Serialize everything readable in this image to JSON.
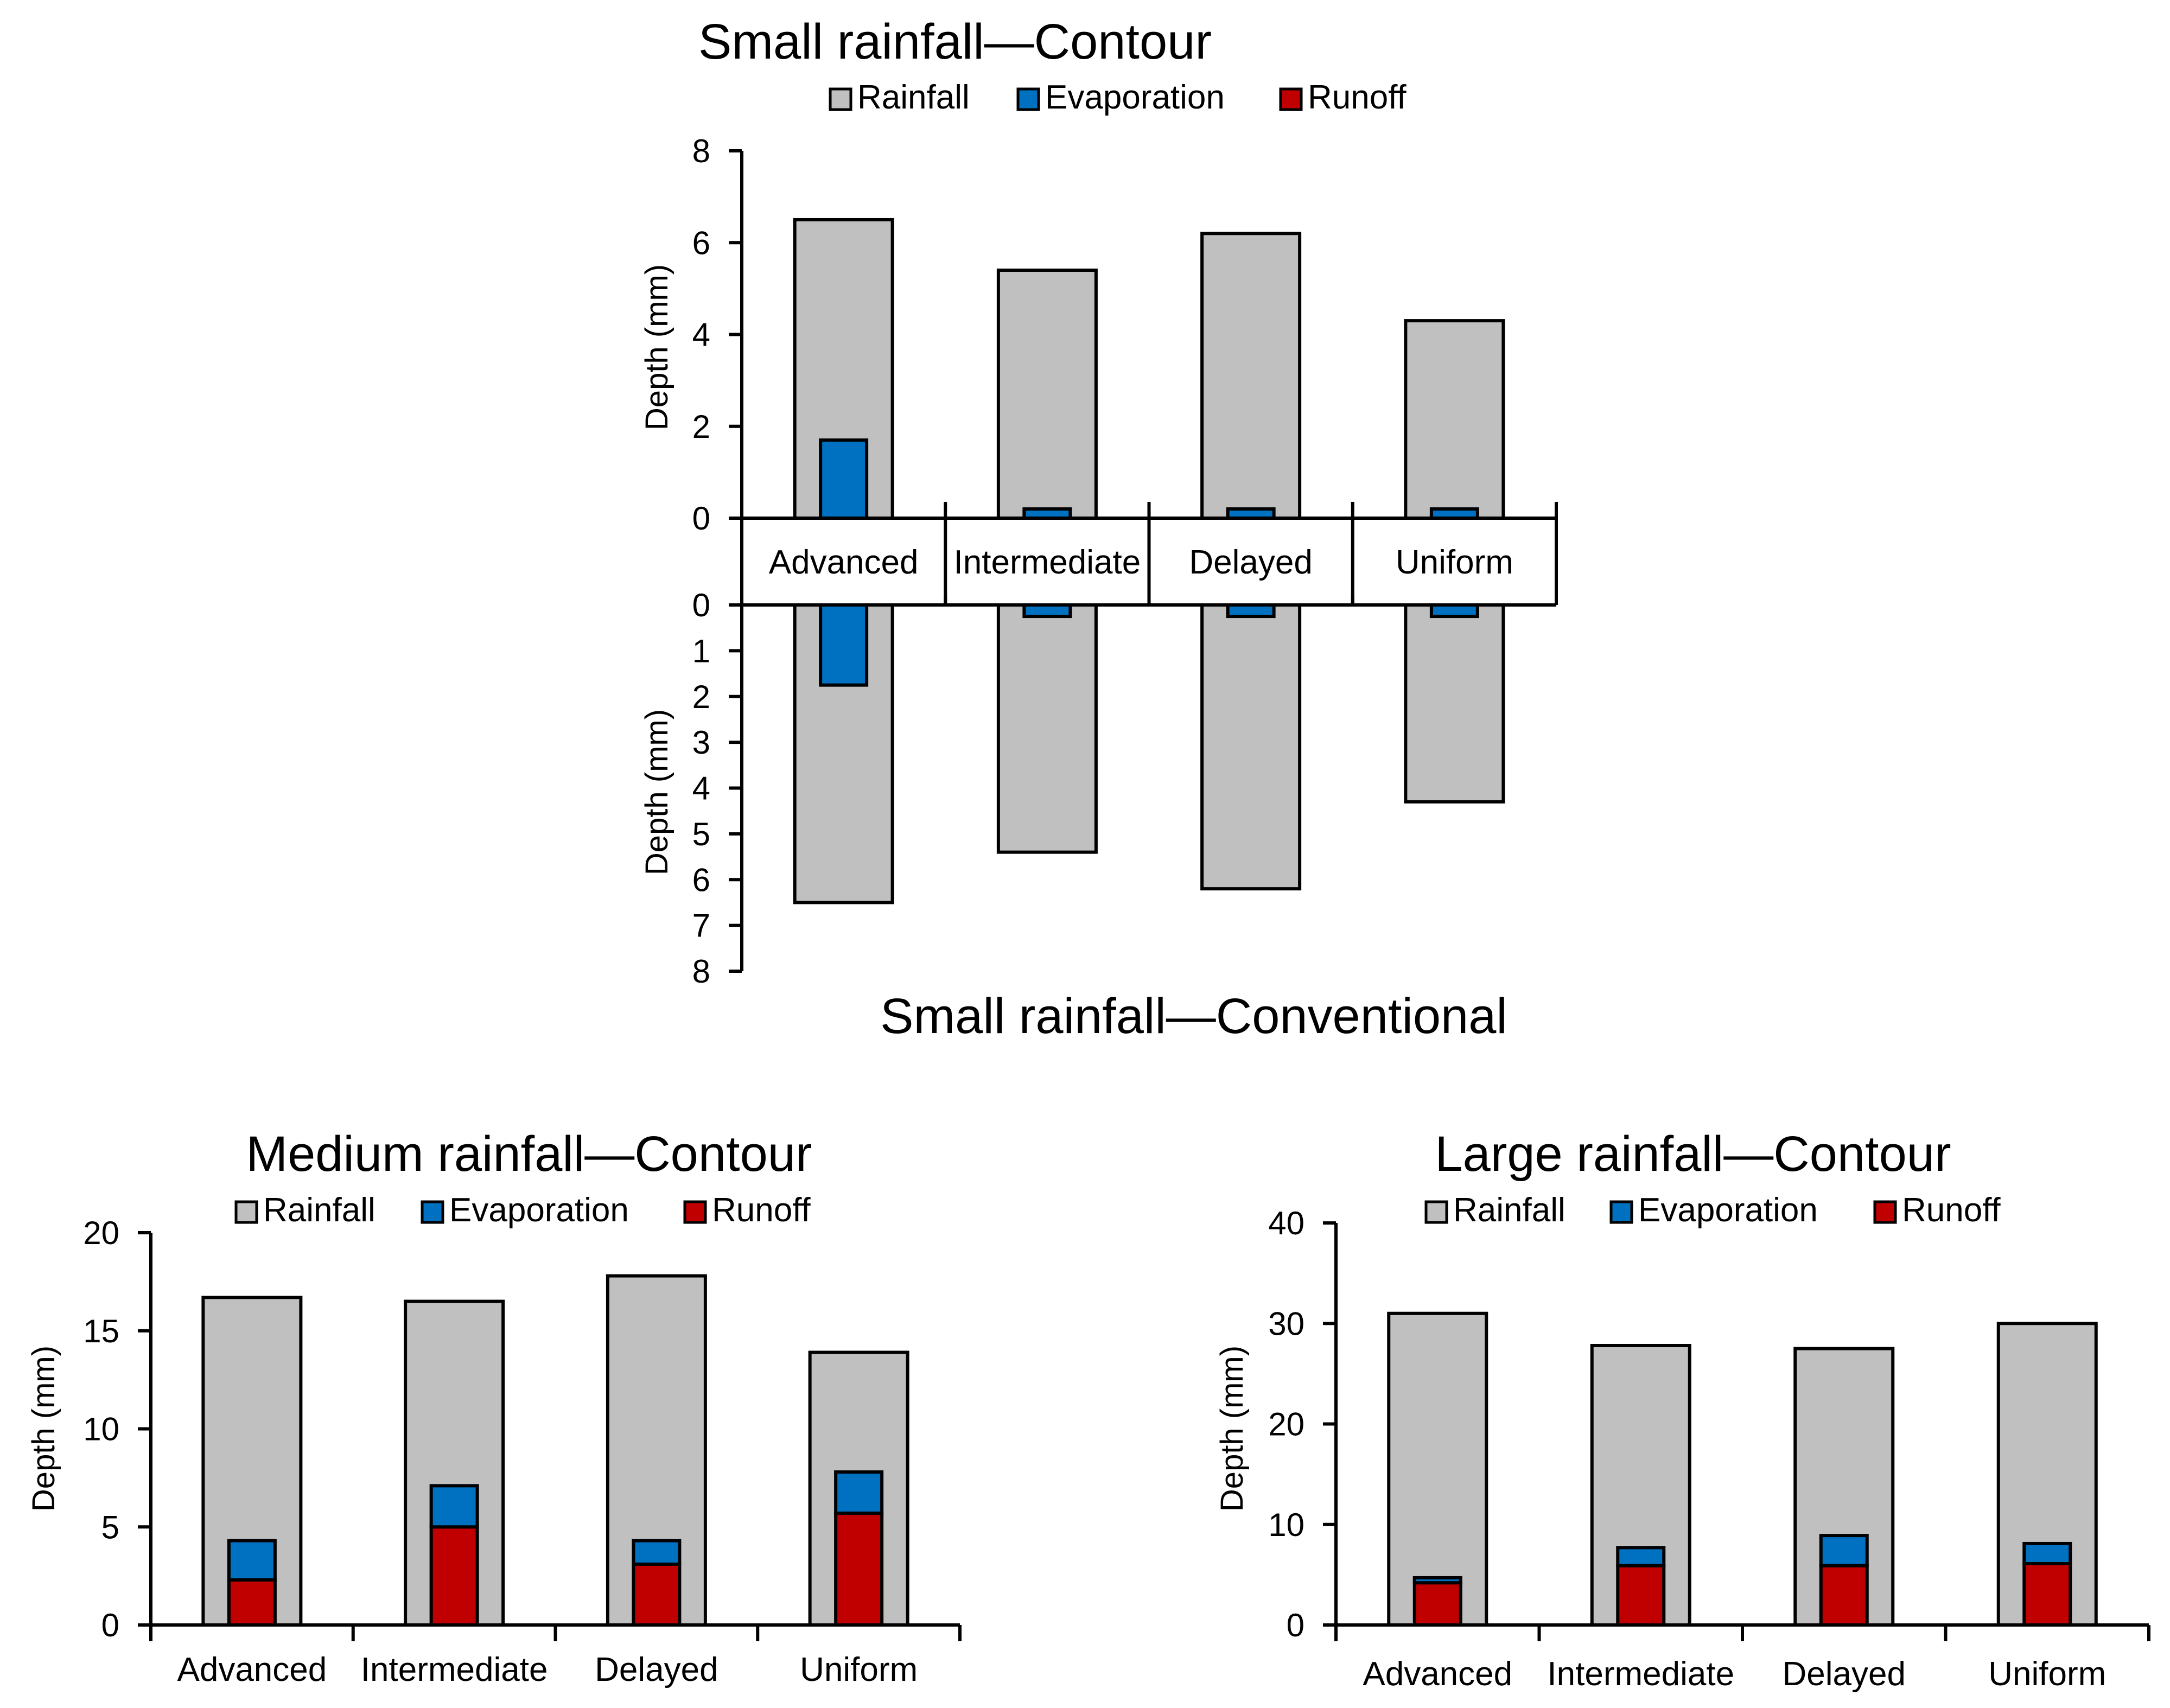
{
  "colors": {
    "rainfall": "#c0c0c0",
    "evaporation": "#0070c0",
    "runoff": "#c00000",
    "axis": "#000000"
  },
  "legend_items": [
    "Rainfall",
    "Evaporation",
    "Runoff"
  ],
  "chart_data": [
    {
      "id": "small-contour",
      "type": "bar",
      "title": "Small rainfall—Contour",
      "ylabel": "Depth (mm)",
      "ylim": [
        0,
        8
      ],
      "yticks": [
        0,
        2,
        4,
        6,
        8
      ],
      "categories": [
        "Advanced",
        "Intermediate",
        "Delayed",
        "Uniform"
      ],
      "series": [
        {
          "name": "Rainfall",
          "values": [
            6.5,
            5.4,
            6.2,
            4.3
          ]
        },
        {
          "name": "Evaporation",
          "values": [
            1.7,
            0.2,
            0.2,
            0.2
          ]
        },
        {
          "name": "Runoff",
          "values": [
            0,
            0,
            0,
            0
          ]
        }
      ]
    },
    {
      "id": "small-conventional",
      "type": "bar",
      "title": "Small rainfall—Conventional",
      "ylabel": "Depth (mm)",
      "ylim": [
        0,
        8
      ],
      "yticks": [
        0,
        1,
        2,
        3,
        4,
        5,
        6,
        7,
        8
      ],
      "inverted": true,
      "categories": [
        "Advanced",
        "Intermediate",
        "Delayed",
        "Uniform"
      ],
      "series": [
        {
          "name": "Rainfall",
          "values": [
            6.5,
            5.4,
            6.2,
            4.3
          ]
        },
        {
          "name": "Evaporation",
          "values": [
            1.75,
            0.25,
            0.25,
            0.25
          ]
        },
        {
          "name": "Runoff",
          "values": [
            0,
            0,
            0,
            0
          ]
        }
      ]
    },
    {
      "id": "medium-contour",
      "type": "bar",
      "title": "Medium rainfall—Contour",
      "ylabel": "Depth (mm)",
      "ylim": [
        0,
        20
      ],
      "yticks": [
        0,
        5,
        10,
        15,
        20
      ],
      "categories": [
        "Advanced",
        "Intermediate",
        "Delayed",
        "Uniform"
      ],
      "series": [
        {
          "name": "Rainfall",
          "values": [
            16.7,
            16.5,
            17.8,
            13.9
          ]
        },
        {
          "name": "Evaporation",
          "values": [
            2.0,
            2.1,
            1.2,
            2.1
          ]
        },
        {
          "name": "Runoff",
          "values": [
            2.3,
            5.0,
            3.1,
            5.7
          ]
        }
      ]
    },
    {
      "id": "large-contour",
      "type": "bar",
      "title": "Large rainfall—Contour",
      "ylabel": "Depth (mm)",
      "ylim": [
        0,
        40
      ],
      "yticks": [
        0,
        10,
        20,
        30,
        40
      ],
      "categories": [
        "Advanced",
        "Intermediate",
        "Delayed",
        "Uniform"
      ],
      "series": [
        {
          "name": "Rainfall",
          "values": [
            31.0,
            27.8,
            27.5,
            30.0
          ]
        },
        {
          "name": "Evaporation",
          "values": [
            0.5,
            1.8,
            3.0,
            2.0
          ]
        },
        {
          "name": "Runoff",
          "values": [
            4.2,
            5.9,
            5.9,
            6.1
          ]
        }
      ]
    }
  ]
}
